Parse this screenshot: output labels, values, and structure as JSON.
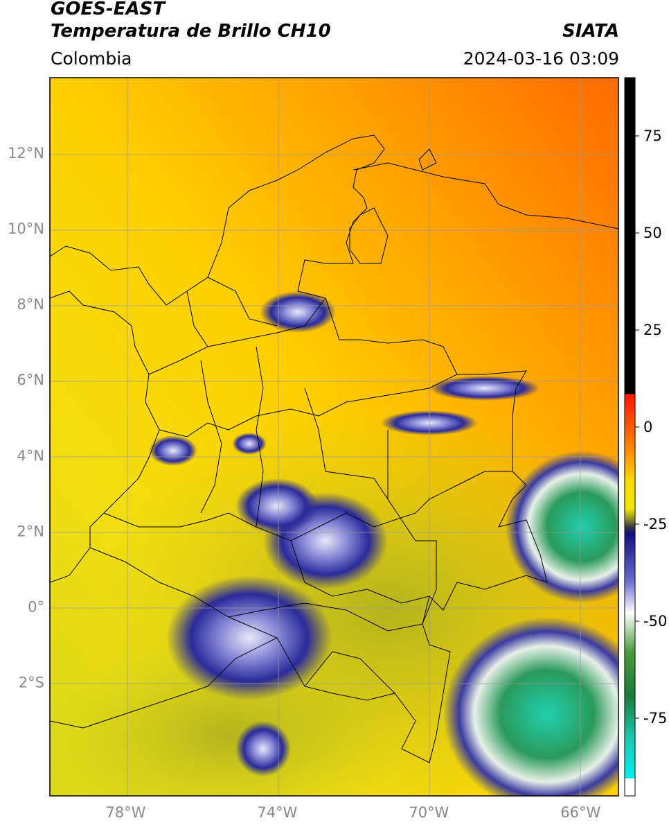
{
  "header": {
    "satellite": "GOES-EAST",
    "product": "Temperatura de Brillo CH10",
    "region": "Colombia",
    "organization": "SIATA",
    "timestamp": "2024-03-16 03:09"
  },
  "map": {
    "lat_ticks": [
      {
        "value": 12,
        "label": "12°N"
      },
      {
        "value": 10,
        "label": "10°N"
      },
      {
        "value": 8,
        "label": "8°N"
      },
      {
        "value": 6,
        "label": "6°N"
      },
      {
        "value": 4,
        "label": "4°N"
      },
      {
        "value": 2,
        "label": "2°N"
      },
      {
        "value": 0,
        "label": "0°"
      },
      {
        "value": -2,
        "label": "2°S"
      }
    ],
    "lon_ticks": [
      {
        "value": -78,
        "label": "78°W"
      },
      {
        "value": -74,
        "label": "74°W"
      },
      {
        "value": -70,
        "label": "70°W"
      },
      {
        "value": -66,
        "label": "66°W"
      }
    ],
    "extent": {
      "lon_min": -80,
      "lon_max": -65,
      "lat_min": -5,
      "lat_max": 14
    }
  },
  "colorbar": {
    "ticks": [
      {
        "value": 75,
        "label": "75"
      },
      {
        "value": 50,
        "label": "50"
      },
      {
        "value": 25,
        "label": "25"
      },
      {
        "value": 0,
        "label": "0"
      },
      {
        "value": -25,
        "label": "-25"
      },
      {
        "value": -50,
        "label": "-50"
      },
      {
        "value": -75,
        "label": "-75"
      }
    ],
    "range": [
      -95,
      90
    ],
    "colors": {
      "hot": "#ff6a00",
      "warm": "#ffd400",
      "mild": "#c8c81e",
      "cold": "#1a1a8c",
      "very_cold": "#2ecfa8",
      "saturated": "#000000"
    }
  }
}
